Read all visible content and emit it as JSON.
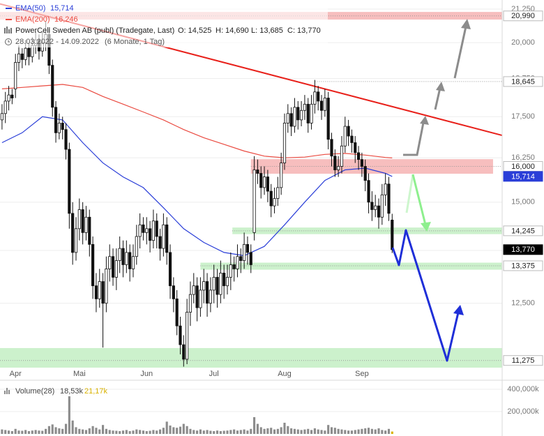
{
  "chart_data": [
    {
      "type": "candlestick",
      "title": "PowerCell Sweden AB (publ) (Tradegate, Last)",
      "quote": {
        "open": "O: 14,525",
        "high": "H: 14,690",
        "low": "L: 13,685",
        "close": "C: 13,770"
      },
      "period": "28.03.2022 - 14.09.2022",
      "period_note": "(6 Monate, 1 Tag)",
      "categories": [
        null,
        null,
        null,
        null,
        "Apr",
        null,
        null,
        null,
        null,
        null,
        null,
        null,
        null,
        null,
        null,
        null,
        null,
        null,
        null,
        null,
        null,
        null,
        null,
        "Mai",
        null,
        null,
        null,
        null,
        null,
        null,
        null,
        null,
        null,
        null,
        null,
        null,
        null,
        null,
        null,
        null,
        null,
        null,
        null,
        "Jun",
        null,
        null,
        null,
        null,
        null,
        null,
        null,
        null,
        null,
        null,
        null,
        null,
        null,
        null,
        null,
        null,
        null,
        null,
        null,
        "Jul",
        null,
        null,
        null,
        null,
        null,
        null,
        null,
        null,
        null,
        null,
        null,
        null,
        null,
        null,
        null,
        null,
        null,
        null,
        null,
        null,
        "Aug",
        null,
        null,
        null,
        null,
        null,
        null,
        null,
        null,
        null,
        null,
        null,
        null,
        null,
        null,
        null,
        null,
        null,
        null,
        null,
        null,
        null,
        null,
        "Sep",
        null,
        null,
        null,
        null,
        null,
        null,
        null,
        null,
        null
      ],
      "open": [
        17.4,
        17.6,
        18.0,
        18.2,
        18.4,
        19.3,
        19.6,
        19.4,
        19.8,
        19.5,
        19.9,
        20.1,
        19.7,
        20.0,
        20.3,
        19.2,
        17.8,
        17.0,
        17.3,
        17.1,
        16.5,
        14.7,
        13.7,
        14.3,
        14.8,
        14.2,
        14.6,
        13.9,
        12.9,
        12.6,
        13.0,
        12.5,
        13.3,
        13.6,
        13.1,
        13.5,
        13.8,
        13.4,
        13.7,
        13.3,
        13.6,
        14.1,
        14.4,
        14.2,
        14.3,
        14.0,
        14.5,
        14.1,
        13.8,
        14.4,
        13.7,
        12.9,
        12.6,
        12.0,
        11.6,
        11.3,
        12.3,
        12.7,
        12.9,
        12.4,
        12.8,
        13.0,
        12.5,
        12.8,
        13.1,
        12.7,
        13.2,
        12.9,
        13.1,
        13.4,
        13.3,
        13.6,
        13.5,
        13.9,
        13.7,
        14.2,
        15.9,
        15.8,
        15.4,
        15.7,
        15.3,
        14.9,
        15.1,
        15.4,
        16.1,
        17.3,
        17.6,
        17.2,
        17.8,
        17.4,
        17.7,
        17.9,
        17.3,
        17.9,
        18.3,
        18.0,
        17.7,
        18.1,
        16.8,
        16.3,
        15.9,
        16.0,
        16.6,
        17.2,
        16.9,
        16.7,
        16.4,
        16.2,
        16.0,
        15.6,
        15.0,
        14.8,
        14.9,
        14.6,
        15.2,
        15.5,
        14.525
      ],
      "high": [
        17.9,
        18.3,
        18.5,
        18.4,
        19.6,
        19.9,
        19.8,
        20.1,
        20.0,
        20.2,
        20.4,
        20.3,
        20.4,
        20.8,
        20.5,
        19.4,
        18.0,
        17.6,
        17.5,
        17.3,
        16.7,
        15.0,
        14.6,
        15.1,
        15.0,
        14.9,
        14.8,
        14.1,
        13.2,
        13.3,
        13.2,
        13.6,
        13.9,
        13.8,
        13.8,
        14.1,
        14.0,
        14.0,
        13.9,
        13.9,
        14.4,
        14.7,
        14.6,
        14.6,
        14.5,
        14.8,
        14.7,
        14.3,
        14.7,
        14.6,
        13.9,
        13.1,
        12.8,
        12.2,
        11.8,
        12.6,
        13.0,
        13.2,
        13.1,
        13.1,
        13.3,
        13.2,
        13.1,
        13.4,
        13.3,
        13.5,
        13.4,
        13.4,
        13.7,
        13.6,
        13.9,
        13.8,
        14.2,
        14.1,
        13.9,
        16.3,
        16.2,
        16.0,
        16.0,
        15.9,
        15.5,
        15.4,
        15.7,
        16.4,
        17.6,
        17.9,
        17.8,
        18.1,
        18.0,
        18.0,
        18.2,
        18.1,
        18.2,
        18.7,
        18.5,
        18.2,
        18.4,
        18.3,
        17.0,
        16.5,
        16.3,
        16.9,
        17.5,
        17.4,
        17.1,
        16.9,
        16.6,
        16.4,
        16.2,
        15.8,
        15.3,
        15.2,
        15.1,
        15.5,
        15.8,
        15.7,
        14.69
      ],
      "low": [
        17.1,
        17.3,
        17.7,
        17.9,
        18.1,
        19.0,
        19.1,
        19.2,
        19.2,
        19.3,
        19.6,
        19.4,
        19.5,
        19.7,
        18.9,
        17.5,
        16.7,
        16.8,
        16.8,
        16.2,
        14.3,
        13.4,
        13.5,
        14.0,
        13.9,
        14.0,
        13.6,
        12.6,
        12.3,
        12.4,
        11.54,
        12.3,
        13.0,
        12.9,
        12.8,
        13.2,
        13.1,
        13.2,
        13.0,
        13.1,
        13.4,
        13.8,
        14.0,
        13.9,
        13.7,
        13.8,
        13.8,
        13.5,
        13.6,
        13.4,
        12.6,
        12.3,
        11.8,
        11.4,
        11.15,
        11.2,
        12.0,
        12.5,
        12.1,
        12.2,
        12.5,
        12.2,
        12.3,
        12.5,
        12.4,
        12.5,
        12.6,
        12.7,
        12.8,
        13.0,
        13.1,
        13.2,
        13.3,
        13.4,
        13.2,
        14.0,
        15.5,
        15.1,
        15.2,
        15.0,
        14.6,
        14.7,
        14.9,
        15.2,
        15.9,
        17.0,
        16.9,
        17.0,
        17.1,
        17.2,
        17.4,
        17.0,
        17.1,
        17.6,
        17.7,
        17.4,
        17.5,
        16.5,
        16.0,
        15.7,
        15.7,
        15.8,
        16.4,
        16.6,
        16.4,
        16.1,
        15.9,
        15.7,
        15.3,
        14.7,
        14.5,
        14.6,
        14.3,
        14.4,
        14.9,
        14.5,
        13.685
      ],
      "close": [
        17.6,
        18.0,
        18.2,
        18.1,
        19.3,
        19.6,
        19.4,
        19.8,
        19.5,
        19.9,
        20.1,
        19.7,
        20.0,
        20.3,
        19.2,
        17.8,
        17.0,
        17.3,
        17.1,
        16.5,
        14.7,
        13.7,
        14.3,
        14.8,
        14.2,
        14.6,
        13.9,
        12.9,
        12.6,
        13.0,
        12.5,
        13.3,
        13.6,
        13.1,
        13.5,
        13.8,
        13.4,
        13.7,
        13.3,
        13.6,
        14.1,
        14.4,
        14.2,
        14.3,
        14.0,
        14.5,
        14.1,
        13.8,
        14.4,
        13.7,
        12.9,
        12.6,
        12.0,
        11.6,
        11.3,
        12.3,
        12.7,
        12.9,
        12.4,
        12.8,
        13.0,
        12.5,
        12.8,
        13.1,
        12.7,
        13.2,
        12.9,
        13.1,
        13.4,
        13.3,
        13.6,
        13.5,
        13.9,
        13.7,
        13.4,
        15.9,
        15.8,
        15.4,
        15.7,
        15.3,
        14.9,
        15.1,
        15.4,
        16.1,
        17.3,
        17.6,
        17.2,
        17.8,
        17.4,
        17.7,
        17.9,
        17.3,
        17.9,
        18.3,
        18.0,
        17.7,
        18.1,
        16.8,
        16.3,
        15.9,
        16.0,
        16.6,
        17.2,
        16.9,
        16.7,
        16.4,
        16.2,
        16.0,
        15.6,
        15.0,
        14.8,
        14.9,
        14.6,
        15.2,
        15.5,
        14.7,
        13.77
      ],
      "close_labels": [
        null,
        null,
        null,
        null,
        null,
        null,
        null,
        null,
        null,
        null,
        null,
        null,
        null,
        null,
        null,
        null,
        null,
        null,
        null,
        null,
        null,
        null,
        null,
        null,
        null,
        null,
        null,
        null,
        null,
        null,
        null,
        null,
        null,
        null,
        null,
        null,
        null,
        null,
        null,
        null,
        null,
        null,
        null,
        null,
        null,
        null,
        null,
        null,
        null,
        null,
        null,
        null,
        null,
        null,
        null,
        null,
        null,
        null,
        null,
        null,
        null,
        null,
        null,
        null,
        null,
        null,
        null,
        null,
        null,
        null,
        null,
        null,
        null,
        null,
        null,
        null,
        null,
        null,
        null,
        null,
        null,
        null,
        null,
        null,
        null,
        null,
        null,
        null,
        null,
        null,
        null,
        null,
        null,
        null,
        null,
        null,
        null,
        null,
        null,
        null,
        null,
        null,
        null,
        null,
        null,
        null,
        null,
        null,
        null,
        null,
        null,
        null,
        null,
        null,
        null,
        null,
        "13,770"
      ],
      "candle_colors": {
        "up": "#ffffff",
        "down": "#111111"
      },
      "series": [
        {
          "name": "EMA(50)",
          "color": "#2a3ed8",
          "axis_label": true,
          "x": [
            0,
            6,
            12,
            18,
            24,
            30,
            36,
            42,
            48,
            54,
            60,
            66,
            72,
            78,
            84,
            90,
            96,
            102,
            108,
            114,
            116
          ],
          "values": [
            16.7,
            17.0,
            17.5,
            17.4,
            16.7,
            16.1,
            15.7,
            15.4,
            14.85,
            14.3,
            13.95,
            13.7,
            13.62,
            13.85,
            14.4,
            15.0,
            15.6,
            15.9,
            15.95,
            15.8,
            15.714
          ],
          "value_labels": [
            null,
            null,
            null,
            null,
            null,
            null,
            null,
            null,
            null,
            null,
            null,
            null,
            null,
            null,
            null,
            null,
            null,
            null,
            null,
            null,
            "15,714"
          ]
        },
        {
          "name": "EMA(200)",
          "color": "#ea4a40",
          "axis_label": false,
          "x": [
            0,
            6,
            12,
            18,
            24,
            30,
            36,
            42,
            48,
            54,
            60,
            66,
            72,
            78,
            84,
            90,
            96,
            102,
            108,
            114,
            116
          ],
          "values": [
            18.4,
            18.45,
            18.5,
            18.55,
            18.45,
            18.15,
            17.9,
            17.65,
            17.4,
            17.1,
            16.85,
            16.65,
            16.45,
            16.3,
            16.25,
            16.27,
            16.35,
            16.38,
            16.33,
            16.26,
            16.246
          ],
          "value_labels": [
            null,
            null,
            null,
            null,
            null,
            null,
            null,
            null,
            null,
            null,
            null,
            null,
            null,
            null,
            null,
            null,
            null,
            null,
            null,
            null,
            "16,246"
          ]
        }
      ],
      "trend_line": {
        "color": "#e8201a",
        "x": [
          -0.6,
          148.7
        ],
        "values": [
          21.45,
          16.92
        ]
      },
      "levels": [
        {
          "value": 20.99,
          "label": "20,990",
          "zone": [
            20.85,
            21.14
          ],
          "start": -0.6,
          "color": "#f6b3b3"
        },
        {
          "value": 18.645,
          "label": "18,645",
          "start": 93
        },
        {
          "value": 16.0,
          "label": "16,000",
          "zone": [
            15.79,
            16.21
          ],
          "start": 74,
          "end": 146,
          "color": "#f6b3b3"
        },
        {
          "value": 14.245,
          "label": "14,245",
          "zone": [
            14.16,
            14.33
          ],
          "start": 68.5,
          "color": "#c3efc3"
        },
        {
          "value": 13.375,
          "label": "13,375",
          "zone": [
            13.28,
            13.45
          ],
          "start": 59,
          "color": "#c3efc3"
        },
        {
          "value": 11.275,
          "label": "11,275",
          "zone": [
            11.13,
            11.53
          ],
          "start": -0.6,
          "color": "#c3efc3"
        }
      ],
      "log_scale": true,
      "xlim": [
        -0.6,
        148.7
      ],
      "ylim": [
        11.13,
        21.6
      ],
      "yticks": [
        {
          "value": 12.5,
          "label": "12,500"
        },
        {
          "value": 13.75,
          "label": "13,750"
        },
        {
          "value": 15,
          "label": "15,000"
        },
        {
          "value": 16.25,
          "label": "16,250"
        },
        {
          "value": 17.5,
          "label": "17,500"
        },
        {
          "value": 18.75,
          "label": "18,750"
        },
        {
          "value": 20,
          "label": "20,000"
        },
        {
          "value": 21.25,
          "label": "21,250"
        }
      ],
      "grid": true
    },
    {
      "type": "bar",
      "title": "Volume(28)",
      "ma_label": "18,53k",
      "values": [
        40,
        35,
        30,
        25,
        45,
        30,
        28,
        35,
        25,
        30,
        35,
        30,
        28,
        45,
        70,
        85,
        60,
        50,
        45,
        90,
        337,
        120,
        60,
        45,
        40,
        35,
        50,
        70,
        55,
        40,
        80,
        45,
        35,
        30,
        28,
        25,
        30,
        35,
        25,
        30,
        40,
        35,
        30,
        25,
        28,
        35,
        30,
        40,
        55,
        110,
        75,
        60,
        55,
        65,
        90,
        70,
        45,
        35,
        30,
        40,
        30,
        35,
        28,
        25,
        30,
        25,
        28,
        30,
        35,
        40,
        30,
        35,
        40,
        30,
        45,
        150,
        90,
        60,
        45,
        50,
        55,
        40,
        45,
        60,
        100,
        70,
        50,
        45,
        40,
        35,
        40,
        45,
        35,
        50,
        40,
        35,
        30,
        80,
        60,
        55,
        45,
        40,
        35,
        30,
        30,
        35,
        40,
        45,
        50,
        55,
        45,
        40,
        50,
        35,
        30,
        45,
        21.17
      ],
      "value_labels": [
        null,
        null,
        null,
        null,
        null,
        null,
        null,
        null,
        null,
        null,
        null,
        null,
        null,
        null,
        null,
        null,
        null,
        null,
        null,
        null,
        null,
        null,
        null,
        null,
        null,
        null,
        null,
        null,
        null,
        null,
        null,
        null,
        null,
        null,
        null,
        null,
        null,
        null,
        null,
        null,
        null,
        null,
        null,
        null,
        null,
        null,
        null,
        null,
        null,
        null,
        null,
        null,
        null,
        null,
        null,
        null,
        null,
        null,
        null,
        null,
        null,
        null,
        null,
        null,
        null,
        null,
        null,
        null,
        null,
        null,
        null,
        null,
        null,
        null,
        null,
        null,
        null,
        null,
        null,
        null,
        null,
        null,
        null,
        null,
        null,
        null,
        null,
        null,
        null,
        null,
        null,
        null,
        null,
        null,
        null,
        null,
        null,
        null,
        null,
        null,
        null,
        null,
        null,
        null,
        null,
        null,
        null,
        null,
        null,
        null,
        null,
        null,
        null,
        null,
        null,
        null,
        "21,17k"
      ],
      "color": "#8c8c8c",
      "highlight_color": "#d9b200",
      "ylim": [
        0,
        481
      ],
      "yticks": [
        {
          "value": 200,
          "label": "200,000k"
        },
        {
          "value": 400,
          "label": "400,000k"
        }
      ],
      "grid": true
    }
  ]
}
